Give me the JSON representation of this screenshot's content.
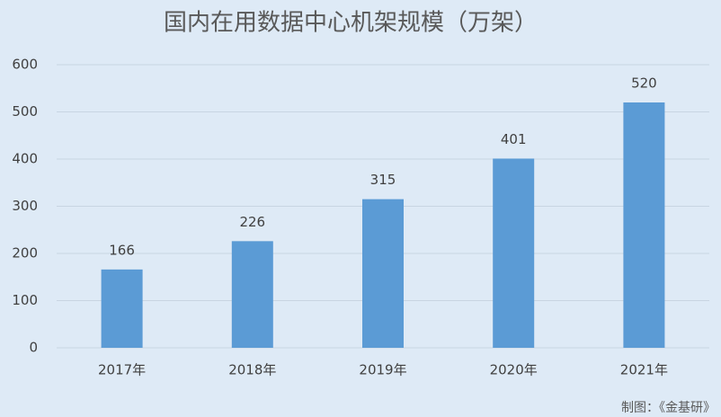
{
  "chart_data": {
    "type": "bar",
    "title": "国内在用数据中心机架规模（万架）",
    "categories": [
      "2017年",
      "2018年",
      "2019年",
      "2020年",
      "2021年"
    ],
    "values": [
      166,
      226,
      315,
      401,
      520
    ],
    "color": "#5b9bd5",
    "ylim": [
      0,
      600
    ],
    "yticks": [
      0,
      100,
      200,
      300,
      400,
      500,
      600
    ],
    "grid": true,
    "source": "制图：《金基研》"
  }
}
